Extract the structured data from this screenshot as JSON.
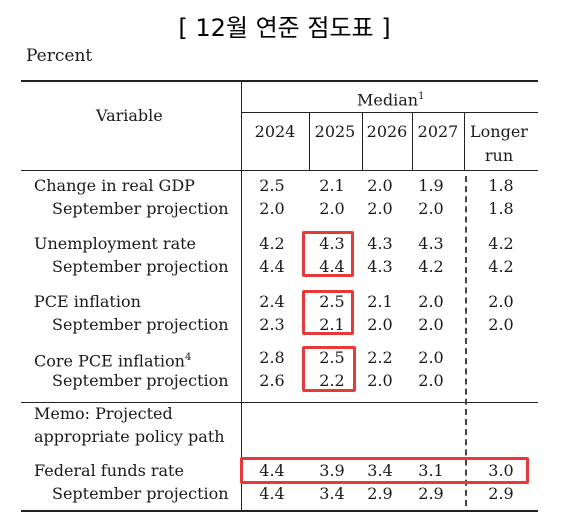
{
  "title": "[ 12월 연준 점도표 ]",
  "unit": "Percent",
  "header": {
    "variable": "Variable",
    "median": "Median",
    "median_note": "1",
    "years": [
      "2024",
      "2025",
      "2026",
      "2027"
    ],
    "longer_run_1": "Longer",
    "longer_run_2": "run"
  },
  "rows": [
    {
      "label": "Change in real GDP",
      "values": [
        "2.5",
        "2.1",
        "2.0",
        "1.9",
        "1.8"
      ]
    },
    {
      "label": "September projection",
      "values": [
        "2.0",
        "2.0",
        "2.0",
        "2.0",
        "1.8"
      ]
    },
    {
      "label": "Unemployment rate",
      "values": [
        "4.2",
        "4.3",
        "4.3",
        "4.3",
        "4.2"
      ]
    },
    {
      "label": "September projection",
      "values": [
        "4.4",
        "4.4",
        "4.3",
        "4.2",
        "4.2"
      ]
    },
    {
      "label": "PCE inflation",
      "values": [
        "2.4",
        "2.5",
        "2.1",
        "2.0",
        "2.0"
      ]
    },
    {
      "label": "September projection",
      "values": [
        "2.3",
        "2.1",
        "2.0",
        "2.0",
        "2.0"
      ]
    },
    {
      "label": "Core PCE inflation",
      "note": "4",
      "values": [
        "2.8",
        "2.5",
        "2.2",
        "2.0",
        ""
      ]
    },
    {
      "label": "September projection",
      "values": [
        "2.6",
        "2.2",
        "2.0",
        "2.0",
        ""
      ]
    }
  ],
  "memo": {
    "line1": "Memo: Projected",
    "line2": "appropriate policy path"
  },
  "funds": [
    {
      "label": "Federal funds rate",
      "values": [
        "4.4",
        "3.9",
        "3.4",
        "3.1",
        "3.0"
      ]
    },
    {
      "label": "September projection",
      "values": [
        "4.4",
        "3.4",
        "2.9",
        "2.9",
        "2.9"
      ]
    }
  ],
  "highlight_color": "#e63a3a"
}
